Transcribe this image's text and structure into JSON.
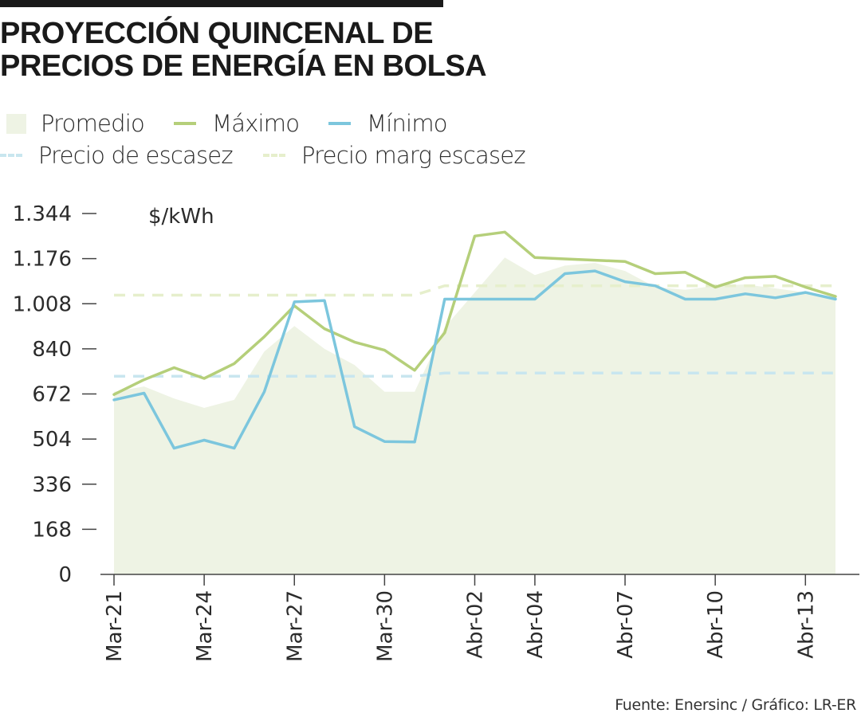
{
  "title_lines": [
    "PROYECCIÓN QUINCENAL DE",
    "PRECIOS DE ENERGÍA EN BOLSA"
  ],
  "legend": [
    {
      "label": "Promedio",
      "kind": "area",
      "color": "#eef3e4"
    },
    {
      "label": "Máximo",
      "kind": "line",
      "color": "#b5cf7a"
    },
    {
      "label": "Mínimo",
      "kind": "line",
      "color": "#7cc6dd"
    },
    {
      "label": "Precio de escasez",
      "kind": "dashed",
      "color": "#c8e6ef"
    },
    {
      "label": "Precio marg escasez",
      "kind": "dashed",
      "color": "#e6efcc"
    }
  ],
  "source": "Fuente: Enersinc / Gráfico: LR-ER",
  "chart_data": {
    "type": "line",
    "ylabel": "$/kWh",
    "ylim": [
      0,
      1344
    ],
    "yticks": [
      0,
      168,
      336,
      504,
      672,
      840,
      1008,
      1176,
      1344
    ],
    "ytick_labels": [
      "0",
      "168",
      "336",
      "504",
      "672",
      "840",
      "1.008",
      "1.176",
      "1.344"
    ],
    "x": [
      "Mar-21",
      "Mar-22",
      "Mar-23",
      "Mar-24",
      "Mar-25",
      "Mar-26",
      "Mar-27",
      "Mar-28",
      "Mar-29",
      "Mar-30",
      "Mar-31",
      "Abr-01",
      "Abr-02",
      "Abr-03",
      "Abr-04",
      "Abr-05",
      "Abr-06",
      "Abr-07",
      "Abr-08",
      "Abr-09",
      "Abr-10",
      "Abr-11",
      "Abr-12",
      "Abr-13",
      "Abr-14"
    ],
    "xtick_labels": [
      "Mar-21",
      "Mar-24",
      "Mar-27",
      "Mar-30",
      "Abr-02",
      "Abr-04",
      "Abr-07",
      "Abr-10",
      "Abr-13"
    ],
    "xtick_categories": [
      "Mar-21",
      "Mar-24",
      "Mar-27",
      "Mar-30",
      "Abr-02",
      "Abr-04",
      "Abr-07",
      "Abr-10",
      "Abr-13"
    ],
    "series": [
      {
        "name": "Promedio",
        "kind": "area",
        "color": "#eef3e4",
        "values": [
          680,
          700,
          655,
          620,
          650,
          830,
          925,
          840,
          780,
          680,
          680,
          920,
          1050,
          1180,
          1115,
          1150,
          1160,
          1130,
          1070,
          1060,
          1075,
          1080,
          1065,
          1050,
          1030
        ]
      },
      {
        "name": "Máximo",
        "kind": "line",
        "color": "#b5cf7a",
        "values": [
          670,
          725,
          770,
          730,
          785,
          885,
          1000,
          915,
          865,
          835,
          760,
          900,
          1260,
          1275,
          1180,
          1175,
          1170,
          1165,
          1120,
          1125,
          1070,
          1105,
          1110,
          1070,
          1035
        ]
      },
      {
        "name": "Mínimo",
        "kind": "line",
        "color": "#7cc6dd",
        "values": [
          650,
          675,
          470,
          500,
          470,
          680,
          1015,
          1020,
          550,
          495,
          493,
          1025,
          1025,
          1025,
          1025,
          1120,
          1130,
          1090,
          1075,
          1025,
          1025,
          1045,
          1030,
          1050,
          1025
        ]
      },
      {
        "name": "Precio de escasez",
        "kind": "dashed",
        "color": "#c8e6ef",
        "values": [
          738,
          738,
          738,
          738,
          738,
          738,
          738,
          738,
          738,
          738,
          738,
          750,
          750,
          750,
          750,
          750,
          750,
          750,
          750,
          750,
          750,
          750,
          750,
          750,
          750
        ]
      },
      {
        "name": "Precio marg escasez",
        "kind": "dashed",
        "color": "#e6efcc",
        "values": [
          1040,
          1040,
          1040,
          1040,
          1040,
          1040,
          1040,
          1040,
          1040,
          1040,
          1040,
          1075,
          1075,
          1075,
          1075,
          1075,
          1075,
          1075,
          1075,
          1075,
          1075,
          1075,
          1075,
          1075,
          1075
        ]
      }
    ]
  }
}
